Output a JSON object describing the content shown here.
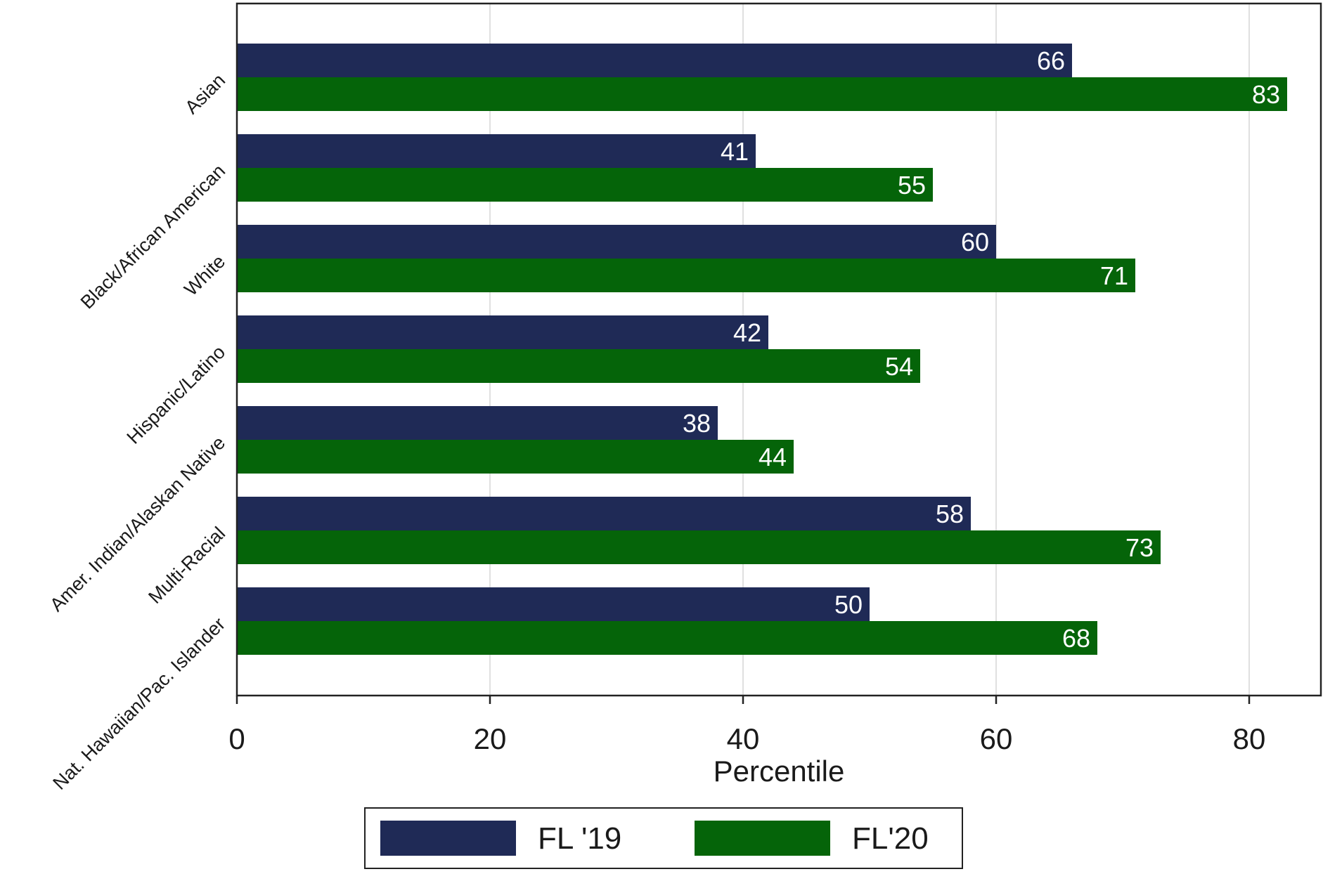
{
  "chart_data": {
    "type": "bar",
    "orientation": "horizontal",
    "title": "",
    "xlabel": "Percentile",
    "ylabel": "",
    "xlim": [
      0,
      85
    ],
    "xticks": [
      0,
      20,
      40,
      60,
      80
    ],
    "grid": true,
    "legend_position": "bottom",
    "categories": [
      "Asian",
      "Black/African American",
      "White",
      "Hispanic/Latino",
      "Amer. Indian/Alaskan Native",
      "Multi-Racial",
      "Nat. Hawaiian/Pac. Islander"
    ],
    "series": [
      {
        "name": "FL '19",
        "color": "#1f2a56",
        "values": [
          66,
          41,
          60,
          42,
          38,
          58,
          50
        ]
      },
      {
        "name": "FL'20",
        "color": "#056409",
        "values": [
          83,
          55,
          71,
          54,
          44,
          73,
          68
        ]
      }
    ]
  }
}
